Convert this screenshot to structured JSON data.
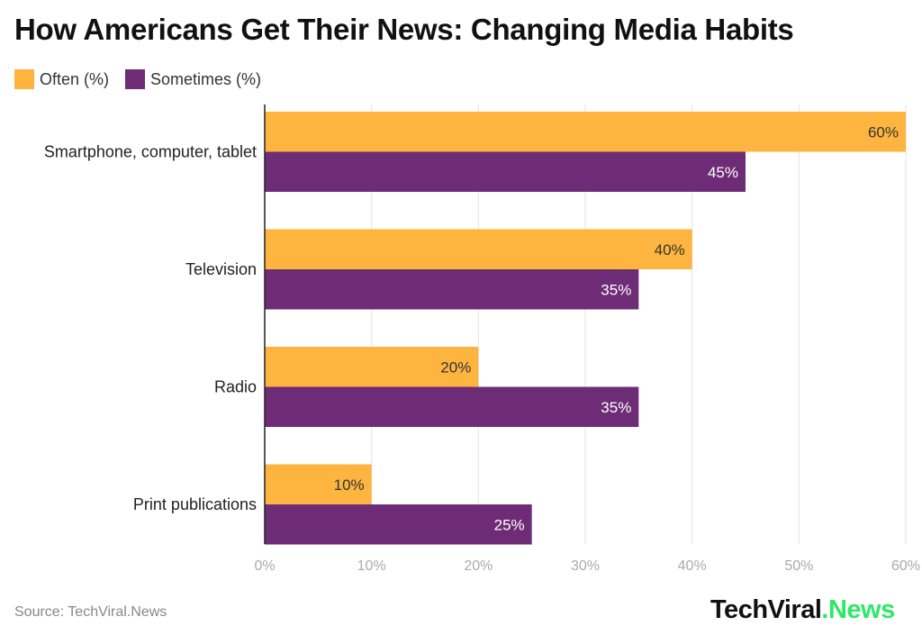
{
  "chart_data": {
    "type": "bar",
    "orientation": "horizontal",
    "title": "How Americans Get Their News: Changing Media Habits",
    "categories": [
      "Smartphone, computer, tablet",
      "Television",
      "Radio",
      "Print publications"
    ],
    "series": [
      {
        "name": "Often (%)",
        "values": [
          60,
          40,
          20,
          10
        ],
        "color": "#FDB53F"
      },
      {
        "name": "Sometimes (%)",
        "values": [
          45,
          35,
          35,
          25
        ],
        "color": "#6E2C77"
      }
    ],
    "xlim": [
      0,
      60
    ],
    "xticks": [
      "0%",
      "10%",
      "20%",
      "30%",
      "40%",
      "50%",
      "60%"
    ],
    "data_labels": true,
    "grid": true,
    "legend": "top-left"
  },
  "source": "Source: TechViral.News",
  "logo": {
    "part1": "TechViral",
    "part2": ".News"
  }
}
